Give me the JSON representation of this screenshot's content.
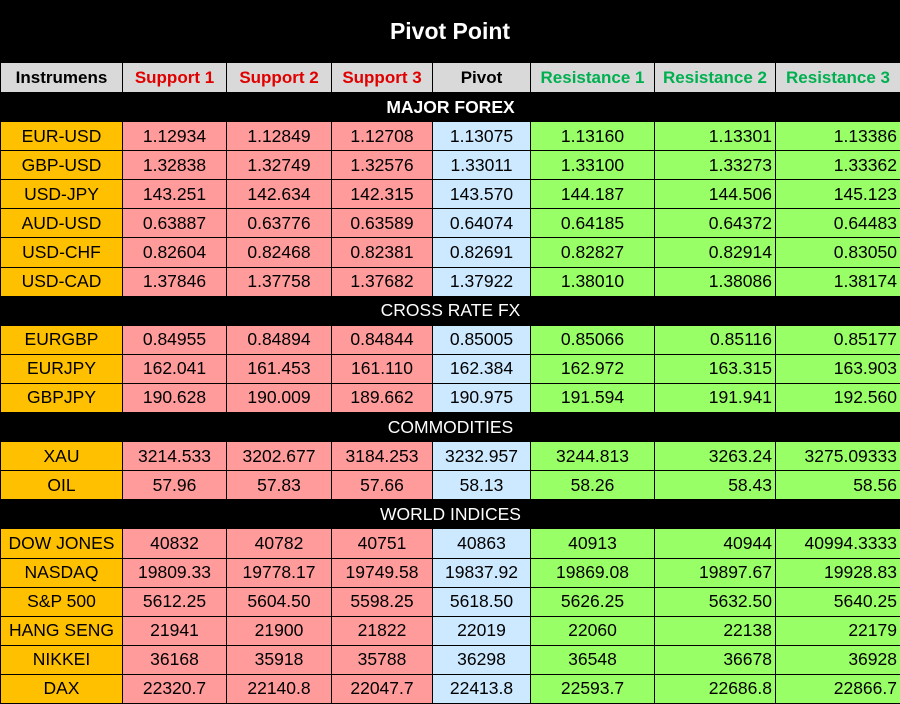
{
  "title": "Pivot Point",
  "colors": {
    "instrument": "#ffc000",
    "support": "#ff9b9b",
    "pivot": "#cce9ff",
    "resistance": "#99ff66",
    "support_text": "#e00000",
    "resistance_text": "#00b050"
  },
  "headers": [
    "Instrumens",
    "Support 1",
    "Support 2",
    "Support 3",
    "Pivot",
    "Resistance 1",
    "Resistance 2",
    "Resistance 3"
  ],
  "sections": [
    {
      "name": "MAJOR FOREX",
      "rows": [
        [
          "EUR-USD",
          "1.12934",
          "1.12849",
          "1.12708",
          "1.13075",
          "1.13160",
          "1.13301",
          "1.13386"
        ],
        [
          "GBP-USD",
          "1.32838",
          "1.32749",
          "1.32576",
          "1.33011",
          "1.33100",
          "1.33273",
          "1.33362"
        ],
        [
          "USD-JPY",
          "143.251",
          "142.634",
          "142.315",
          "143.570",
          "144.187",
          "144.506",
          "145.123"
        ],
        [
          "AUD-USD",
          "0.63887",
          "0.63776",
          "0.63589",
          "0.64074",
          "0.64185",
          "0.64372",
          "0.64483"
        ],
        [
          "USD-CHF",
          "0.82604",
          "0.82468",
          "0.82381",
          "0.82691",
          "0.82827",
          "0.82914",
          "0.83050"
        ],
        [
          "USD-CAD",
          "1.37846",
          "1.37758",
          "1.37682",
          "1.37922",
          "1.38010",
          "1.38086",
          "1.38174"
        ]
      ]
    },
    {
      "name": "CROSS RATE FX",
      "rows": [
        [
          "EURGBP",
          "0.84955",
          "0.84894",
          "0.84844",
          "0.85005",
          "0.85066",
          "0.85116",
          "0.85177"
        ],
        [
          "EURJPY",
          "162.041",
          "161.453",
          "161.110",
          "162.384",
          "162.972",
          "163.315",
          "163.903"
        ],
        [
          "GBPJPY",
          "190.628",
          "190.009",
          "189.662",
          "190.975",
          "191.594",
          "191.941",
          "192.560"
        ]
      ]
    },
    {
      "name": "COMMODITIES",
      "rows": [
        [
          "XAU",
          "3214.533",
          "3202.677",
          "3184.253",
          "3232.957",
          "3244.813",
          "3263.24",
          "3275.09333"
        ],
        [
          "OIL",
          "57.96",
          "57.83",
          "57.66",
          "58.13",
          "58.26",
          "58.43",
          "58.56"
        ]
      ]
    },
    {
      "name": "WORLD INDICES",
      "rows": [
        [
          "DOW JONES",
          "40832",
          "40782",
          "40751",
          "40863",
          "40913",
          "40944",
          "40994.3333"
        ],
        [
          "NASDAQ",
          "19809.33",
          "19778.17",
          "19749.58",
          "19837.92",
          "19869.08",
          "19897.67",
          "19928.83"
        ],
        [
          "S&P 500",
          "5612.25",
          "5604.50",
          "5598.25",
          "5618.50",
          "5626.25",
          "5632.50",
          "5640.25"
        ],
        [
          "HANG SENG",
          "21941",
          "21900",
          "21822",
          "22019",
          "22060",
          "22138",
          "22179"
        ],
        [
          "NIKKEI",
          "36168",
          "35918",
          "35788",
          "36298",
          "36548",
          "36678",
          "36928"
        ],
        [
          "DAX",
          "22320.7",
          "22140.8",
          "22047.7",
          "22413.8",
          "22593.7",
          "22686.8",
          "22866.7"
        ]
      ]
    }
  ]
}
